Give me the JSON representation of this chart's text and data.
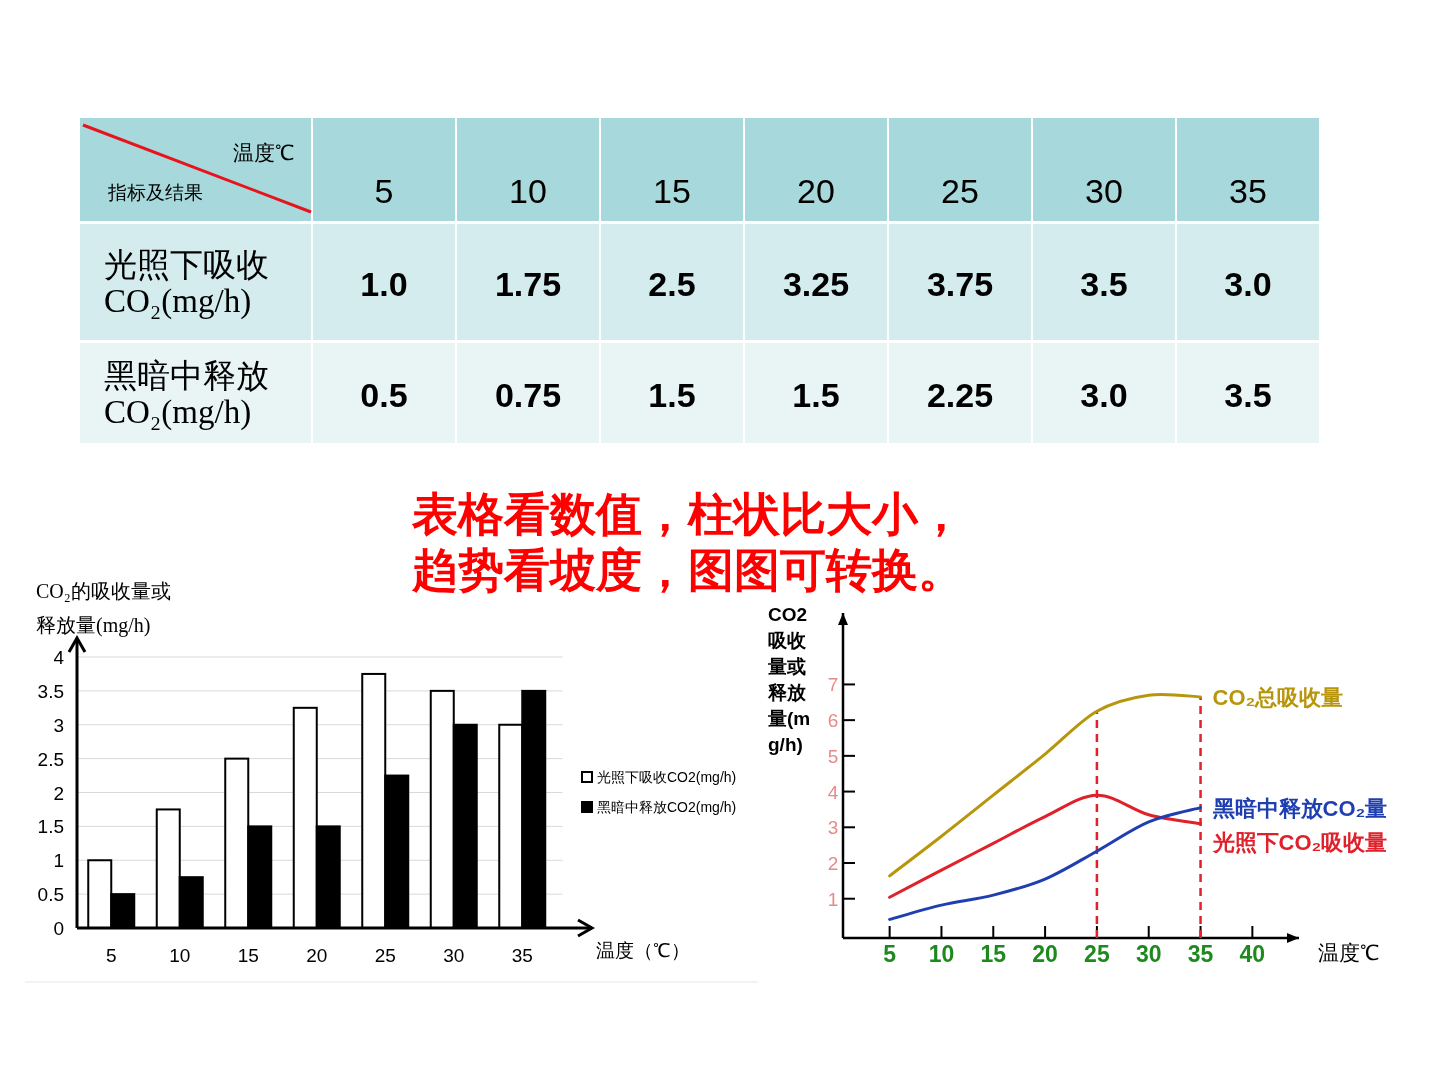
{
  "chart_data": [
    {
      "type": "heatmap",
      "categories": [
        "5",
        "10",
        "15",
        "20",
        "25",
        "30",
        "35"
      ],
      "y_categories": [
        "光照下吸收CO₂(mg/h)",
        "黑暗中释放CO₂(mg/h)"
      ],
      "cells": [
        [
          1.0,
          1.75,
          2.5,
          3.25,
          3.75,
          3.5,
          3.0
        ],
        [
          0.5,
          0.75,
          1.5,
          1.5,
          2.25,
          3.0,
          3.5
        ]
      ],
      "cell_labels": [
        [
          "1.0",
          "1.75",
          "2.5",
          "3.25",
          "3.75",
          "3.5",
          "3.0"
        ],
        [
          "0.5",
          "0.75",
          "1.5",
          "1.5",
          "2.25",
          "3.0",
          "3.5"
        ]
      ],
      "xlabel": "温度℃",
      "ylabel": "指标及结果"
    },
    {
      "type": "bar",
      "categories": [
        "5",
        "10",
        "15",
        "20",
        "25",
        "30",
        "35"
      ],
      "series": [
        {
          "name": "光照下吸收CO2(mg/h)",
          "color": "#ffffff",
          "values": [
            1.0,
            1.75,
            2.5,
            3.25,
            3.75,
            3.5,
            3.0
          ]
        },
        {
          "name": "黑暗中释放CO2(mg/h)",
          "color": "#000000",
          "values": [
            0.5,
            0.75,
            1.5,
            1.5,
            2.25,
            3.0,
            3.5
          ]
        }
      ],
      "ylim": [
        0,
        4
      ],
      "yticks": [
        0,
        0.5,
        1,
        1.5,
        2,
        2.5,
        3,
        3.5,
        4
      ],
      "ylabel": "CO₂的吸收量或释放量(mg/h)",
      "xlabel": "温度（℃）",
      "legend": "right",
      "grid": "y",
      "annotations": [
        "表格看数值，柱状比大小，趋势看坡度，图图可转换。"
      ]
    },
    {
      "type": "line",
      "x": [
        5,
        10,
        15,
        20,
        25,
        30,
        35
      ],
      "series": [
        {
          "name": "CO₂总吸收量",
          "color": "#b8960c",
          "values": [
            1.64,
            2.75,
            3.9,
            5.05,
            6.25,
            6.7,
            6.65
          ]
        },
        {
          "name": "光照下CO₂吸收量",
          "color": "#e0202a",
          "values": [
            1.04,
            1.8,
            2.55,
            3.3,
            3.9,
            3.35,
            3.1
          ]
        },
        {
          "name": "黑暗中释放CO₂量",
          "color": "#1f3fb0",
          "values": [
            0.42,
            0.82,
            1.1,
            1.55,
            2.33,
            3.15,
            3.55
          ]
        }
      ],
      "xlim": [
        0.5,
        44.5
      ],
      "ylim": [
        -0.1,
        9
      ],
      "xticks": [
        5,
        10,
        15,
        20,
        25,
        30,
        35,
        40
      ],
      "yticks": [
        1,
        2,
        3,
        4,
        5,
        6,
        7
      ],
      "xlabel": "温度℃",
      "ylabel": "CO2吸收量或释放量(mg/h)",
      "ref_lines": [
        {
          "axis": "x",
          "value": 25,
          "color": "#e0202a",
          "line_style": "dashed"
        },
        {
          "axis": "x",
          "value": 35,
          "color": "#e0202a",
          "line_style": "dashed"
        }
      ]
    }
  ]
}
